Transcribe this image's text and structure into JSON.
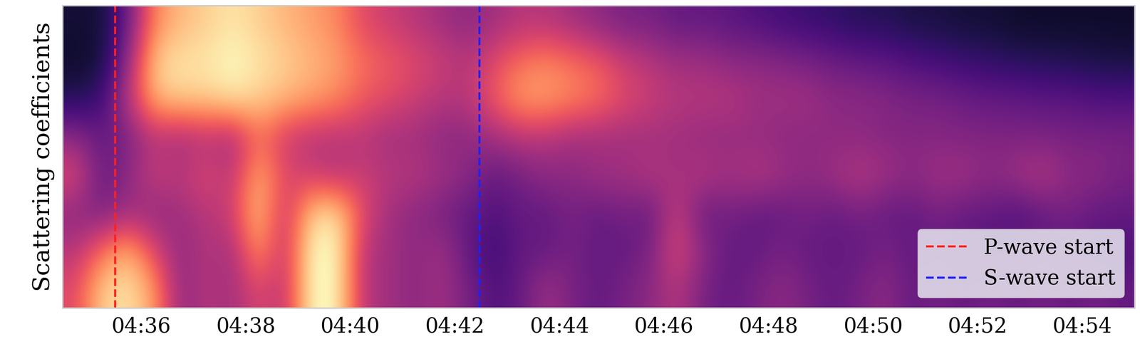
{
  "chart_data": {
    "type": "heatmap",
    "y_label": "Scattering coefficients",
    "tick_labels": "x",
    "legend": "lower right",
    "xlim": [
      274.5,
      295.0
    ],
    "xticks": [
      {
        "value": 276,
        "label": "04:36"
      },
      {
        "value": 278,
        "label": "04:38"
      },
      {
        "value": 280,
        "label": "04:40"
      },
      {
        "value": 282,
        "label": "04:42"
      },
      {
        "value": 284,
        "label": "04:44"
      },
      {
        "value": 286,
        "label": "04:46"
      },
      {
        "value": 288,
        "label": "04:48"
      },
      {
        "value": 290,
        "label": "04:50"
      },
      {
        "value": 292,
        "label": "04:52"
      },
      {
        "value": 294,
        "label": "04:54"
      }
    ],
    "color_range": [
      0,
      1
    ],
    "cells": [
      [
        0.1,
        0.1,
        0.3,
        0.75,
        0.85,
        0.9,
        0.95,
        0.9,
        0.85,
        0.8,
        0.75,
        0.6,
        0.55,
        0.5,
        0.45,
        0.4,
        0.45,
        0.5,
        0.5,
        0.45,
        0.4,
        0.35,
        0.35,
        0.3,
        0.3,
        0.28,
        0.25,
        0.22,
        0.2,
        0.18,
        0.15,
        0.15,
        0.12,
        0.12,
        0.1,
        0.1,
        0.08,
        0.08,
        0.08,
        0.08,
        0.08
      ],
      [
        0.08,
        0.1,
        0.4,
        0.9,
        0.95,
        0.95,
        1.0,
        0.95,
        0.9,
        0.85,
        0.8,
        0.7,
        0.65,
        0.6,
        0.55,
        0.5,
        0.6,
        0.7,
        0.75,
        0.7,
        0.65,
        0.55,
        0.5,
        0.45,
        0.45,
        0.4,
        0.4,
        0.38,
        0.35,
        0.32,
        0.3,
        0.28,
        0.25,
        0.22,
        0.2,
        0.18,
        0.16,
        0.15,
        0.14,
        0.13,
        0.12
      ],
      [
        0.15,
        0.2,
        0.5,
        0.85,
        0.9,
        0.9,
        0.95,
        0.9,
        0.85,
        0.8,
        0.75,
        0.65,
        0.6,
        0.55,
        0.5,
        0.5,
        0.65,
        0.8,
        0.8,
        0.75,
        0.7,
        0.6,
        0.55,
        0.5,
        0.5,
        0.5,
        0.45,
        0.45,
        0.45,
        0.4,
        0.4,
        0.38,
        0.35,
        0.35,
        0.32,
        0.3,
        0.3,
        0.28,
        0.28,
        0.25,
        0.25
      ],
      [
        0.4,
        0.3,
        0.35,
        0.5,
        0.45,
        0.5,
        0.45,
        0.7,
        0.55,
        0.5,
        0.5,
        0.5,
        0.45,
        0.45,
        0.4,
        0.4,
        0.45,
        0.5,
        0.5,
        0.45,
        0.45,
        0.45,
        0.45,
        0.45,
        0.42,
        0.42,
        0.42,
        0.4,
        0.4,
        0.4,
        0.4,
        0.38,
        0.38,
        0.38,
        0.37,
        0.37,
        0.36,
        0.36,
        0.35,
        0.35,
        0.35
      ],
      [
        0.6,
        0.3,
        0.4,
        0.55,
        0.5,
        0.6,
        0.5,
        0.85,
        0.6,
        0.55,
        0.5,
        0.55,
        0.5,
        0.5,
        0.45,
        0.4,
        0.3,
        0.35,
        0.4,
        0.4,
        0.45,
        0.45,
        0.5,
        0.45,
        0.5,
        0.45,
        0.5,
        0.45,
        0.4,
        0.45,
        0.5,
        0.45,
        0.4,
        0.45,
        0.45,
        0.4,
        0.45,
        0.5,
        0.4,
        0.4,
        0.35
      ],
      [
        0.4,
        0.35,
        0.45,
        0.4,
        0.45,
        0.5,
        0.55,
        0.9,
        0.5,
        0.9,
        0.95,
        0.6,
        0.45,
        0.4,
        0.35,
        0.3,
        0.25,
        0.3,
        0.3,
        0.35,
        0.3,
        0.35,
        0.3,
        0.55,
        0.3,
        0.35,
        0.3,
        0.3,
        0.35,
        0.3,
        0.35,
        0.3,
        0.3,
        0.35,
        0.3,
        0.3,
        0.25,
        0.3,
        0.35,
        0.3,
        0.3
      ],
      [
        0.5,
        0.7,
        0.85,
        0.6,
        0.4,
        0.5,
        0.45,
        0.8,
        0.5,
        1.0,
        1.0,
        0.5,
        0.45,
        0.4,
        0.45,
        0.3,
        0.2,
        0.3,
        0.3,
        0.35,
        0.3,
        0.3,
        0.35,
        0.6,
        0.4,
        0.3,
        0.3,
        0.35,
        0.3,
        0.3,
        0.3,
        0.35,
        0.3,
        0.3,
        0.3,
        0.25,
        0.3,
        0.3,
        0.3,
        0.25,
        0.25
      ],
      [
        0.6,
        0.9,
        0.95,
        0.8,
        0.4,
        0.5,
        0.45,
        0.6,
        0.5,
        1.0,
        1.0,
        0.5,
        0.45,
        0.4,
        0.45,
        0.35,
        0.25,
        0.3,
        0.45,
        0.35,
        0.3,
        0.35,
        0.4,
        0.5,
        0.35,
        0.3,
        0.35,
        0.4,
        0.35,
        0.3,
        0.35,
        0.4,
        0.3,
        0.35,
        0.3,
        0.35,
        0.3,
        0.35,
        0.3,
        0.35,
        0.3
      ]
    ],
    "series": [
      {
        "name": "P-wave start",
        "type": "vline",
        "x": [
          275.5
        ],
        "color": "#ff2020",
        "line_style": "dashed"
      },
      {
        "name": "S-wave start",
        "type": "vline",
        "x": [
          282.47
        ],
        "color": "#2020ff",
        "line_style": "dashed"
      }
    ]
  }
}
